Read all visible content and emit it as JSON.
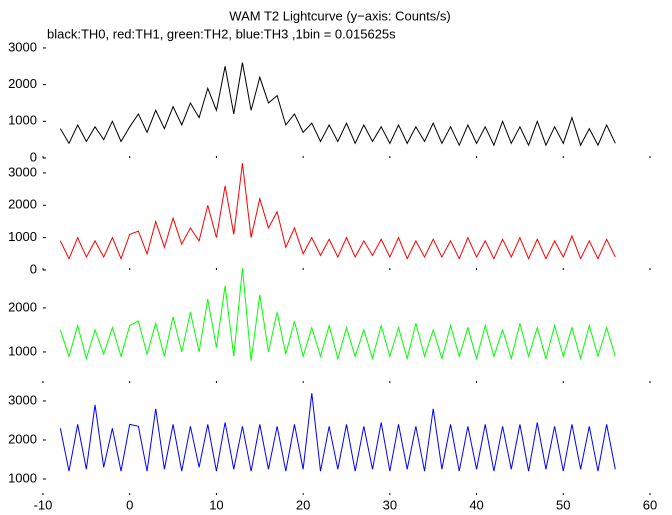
{
  "chart_data": {
    "type": "line",
    "title": "WAM T2 Lightcurve (y−axis: Counts/s)",
    "subtitle": "black:TH0, red:TH1, green:TH2, blue:TH3 ,1bin = 0.015625s",
    "x": [
      -8,
      -7,
      -6,
      -5,
      -4,
      -3,
      -2,
      -1,
      0,
      1,
      2,
      3,
      4,
      5,
      6,
      7,
      8,
      9,
      10,
      11,
      12,
      13,
      14,
      15,
      16,
      17,
      18,
      19,
      20,
      21,
      22,
      23,
      24,
      25,
      26,
      27,
      28,
      29,
      30,
      31,
      32,
      33,
      34,
      35,
      36,
      37,
      38,
      39,
      40,
      41,
      42,
      43,
      44,
      45,
      46,
      47,
      48,
      49,
      50,
      51,
      52,
      53,
      54,
      55,
      56
    ],
    "xlim": [
      -10,
      60
    ],
    "xticks": [
      -10,
      0,
      10,
      20,
      30,
      40,
      50,
      60
    ],
    "series": [
      {
        "color": "#000000",
        "ylim": [
          0,
          3080
        ],
        "yticks": [
          0,
          1000,
          2000,
          3000
        ],
        "values": [
          800,
          400,
          900,
          450,
          850,
          500,
          1000,
          450,
          850,
          1200,
          700,
          1300,
          800,
          1400,
          900,
          1500,
          1100,
          1900,
          1300,
          2500,
          1200,
          2600,
          1300,
          2200,
          1500,
          1700,
          900,
          1200,
          700,
          950,
          450,
          900,
          450,
          950,
          400,
          900,
          450,
          850,
          400,
          900,
          400,
          850,
          450,
          950,
          400,
          850,
          350,
          900,
          400,
          850,
          350,
          1000,
          400,
          850,
          350,
          1000,
          350,
          850,
          400,
          1100,
          350,
          800,
          350,
          900,
          400
        ]
      },
      {
        "color": "#ff0000",
        "ylim": [
          0,
          3460
        ],
        "yticks": [
          0,
          1000,
          2000,
          3000
        ],
        "values": [
          900,
          350,
          1000,
          400,
          900,
          400,
          1000,
          350,
          1100,
          1200,
          500,
          1500,
          700,
          1600,
          800,
          1300,
          900,
          2000,
          1000,
          2600,
          1100,
          3300,
          1000,
          2200,
          1300,
          1800,
          700,
          1300,
          500,
          1000,
          450,
          950,
          400,
          1000,
          400,
          900,
          450,
          950,
          400,
          1000,
          350,
          900,
          400,
          950,
          400,
          900,
          350,
          1000,
          400,
          900,
          350,
          950,
          400,
          1000,
          350,
          950,
          350,
          900,
          400,
          1050,
          350,
          900,
          350,
          950,
          400
        ]
      },
      {
        "color": "#00ff00",
        "ylim": [
          295,
          2860
        ],
        "yticks": [
          1000,
          2000
        ],
        "values": [
          1500,
          900,
          1600,
          850,
          1500,
          950,
          1550,
          900,
          1600,
          1700,
          950,
          1650,
          900,
          1800,
          1000,
          1900,
          1000,
          2200,
          1100,
          2500,
          900,
          2900,
          800,
          2300,
          1000,
          1900,
          950,
          1700,
          900,
          1550,
          900,
          1600,
          850,
          1550,
          900,
          1500,
          850,
          1600,
          900,
          1550,
          850,
          1650,
          900,
          1500,
          850,
          1600,
          900,
          1550,
          850,
          1600,
          900,
          1500,
          850,
          1650,
          900,
          1550,
          850,
          1600,
          900,
          1550,
          850,
          1600,
          900,
          1550,
          900
        ]
      },
      {
        "color": "#0000ff",
        "ylim": [
          590,
          3460
        ],
        "yticks": [
          1000,
          2000,
          3000
        ],
        "values": [
          2300,
          1200,
          2400,
          1250,
          2900,
          1300,
          2300,
          1200,
          2400,
          2350,
          1200,
          2800,
          1250,
          2400,
          1200,
          2350,
          1300,
          2400,
          1200,
          2450,
          1250,
          2350,
          1200,
          2400,
          1250,
          2350,
          1200,
          2400,
          1250,
          3200,
          1200,
          2350,
          1250,
          2400,
          1200,
          2350,
          1250,
          2450,
          1200,
          2400,
          1250,
          2350,
          1200,
          2800,
          1250,
          2400,
          1200,
          2350,
          1250,
          2400,
          1200,
          2350,
          1250,
          2400,
          1200,
          2450,
          1250,
          2350,
          1200,
          2400,
          1250,
          2350,
          1200,
          2400,
          1250
        ]
      }
    ]
  }
}
